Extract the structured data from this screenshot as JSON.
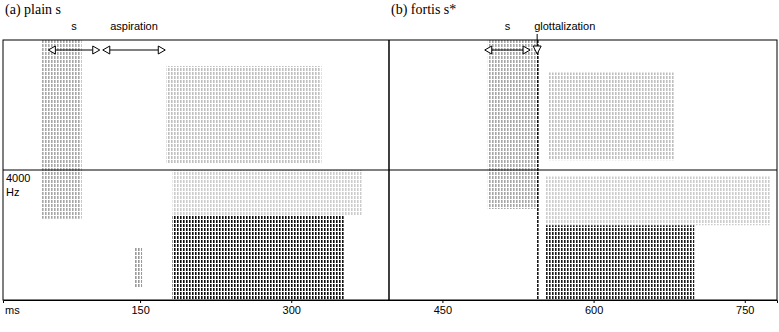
{
  "chart_data": {
    "type": "spectrogram",
    "x_label": "ms",
    "y_label": "Hz",
    "xlim": [
      14,
      782
    ],
    "xticks": [
      150,
      300,
      450,
      600,
      750
    ],
    "ylim": [
      0,
      8000
    ],
    "yticks": [
      4000
    ],
    "panels": [
      {
        "title": "(a) plain s",
        "xlim": [
          14,
          397
        ],
        "intervals": [
          {
            "label": "s",
            "start": 59,
            "end": 110
          },
          {
            "label": "aspiration",
            "start": 113,
            "end": 175
          }
        ],
        "bands": [
          {
            "start": 52,
            "end": 92,
            "low": 2500,
            "high": 8000,
            "level": 0.35
          },
          {
            "start": 145,
            "end": 152,
            "low": 400,
            "high": 1600,
            "level": 0.4
          },
          {
            "start": 176,
            "end": 330,
            "low": 4200,
            "high": 7200,
            "level": 0.25
          },
          {
            "start": 182,
            "end": 370,
            "low": 2600,
            "high": 4000,
            "level": 0.2
          },
          {
            "start": 182,
            "end": 353,
            "low": 0,
            "high": 2600,
            "level": 0.95
          }
        ]
      },
      {
        "title": "(b) fortis s*",
        "xlim": [
          397,
          782
        ],
        "intervals": [
          {
            "label": "s",
            "start": 492,
            "end": 537
          }
        ],
        "markers": [
          {
            "label": "glottalization",
            "time": 544
          }
        ],
        "bands": [
          {
            "start": 495,
            "end": 545,
            "low": 2800,
            "high": 8000,
            "level": 0.35
          },
          {
            "start": 555,
            "end": 680,
            "low": 4300,
            "high": 7000,
            "level": 0.25
          },
          {
            "start": 552,
            "end": 775,
            "low": 2300,
            "high": 3800,
            "level": 0.2
          },
          {
            "start": 552,
            "end": 700,
            "low": 0,
            "high": 2300,
            "level": 0.9
          },
          {
            "start": 543,
            "end": 546,
            "low": 0,
            "high": 8000,
            "level": 0.9
          }
        ]
      }
    ]
  }
}
